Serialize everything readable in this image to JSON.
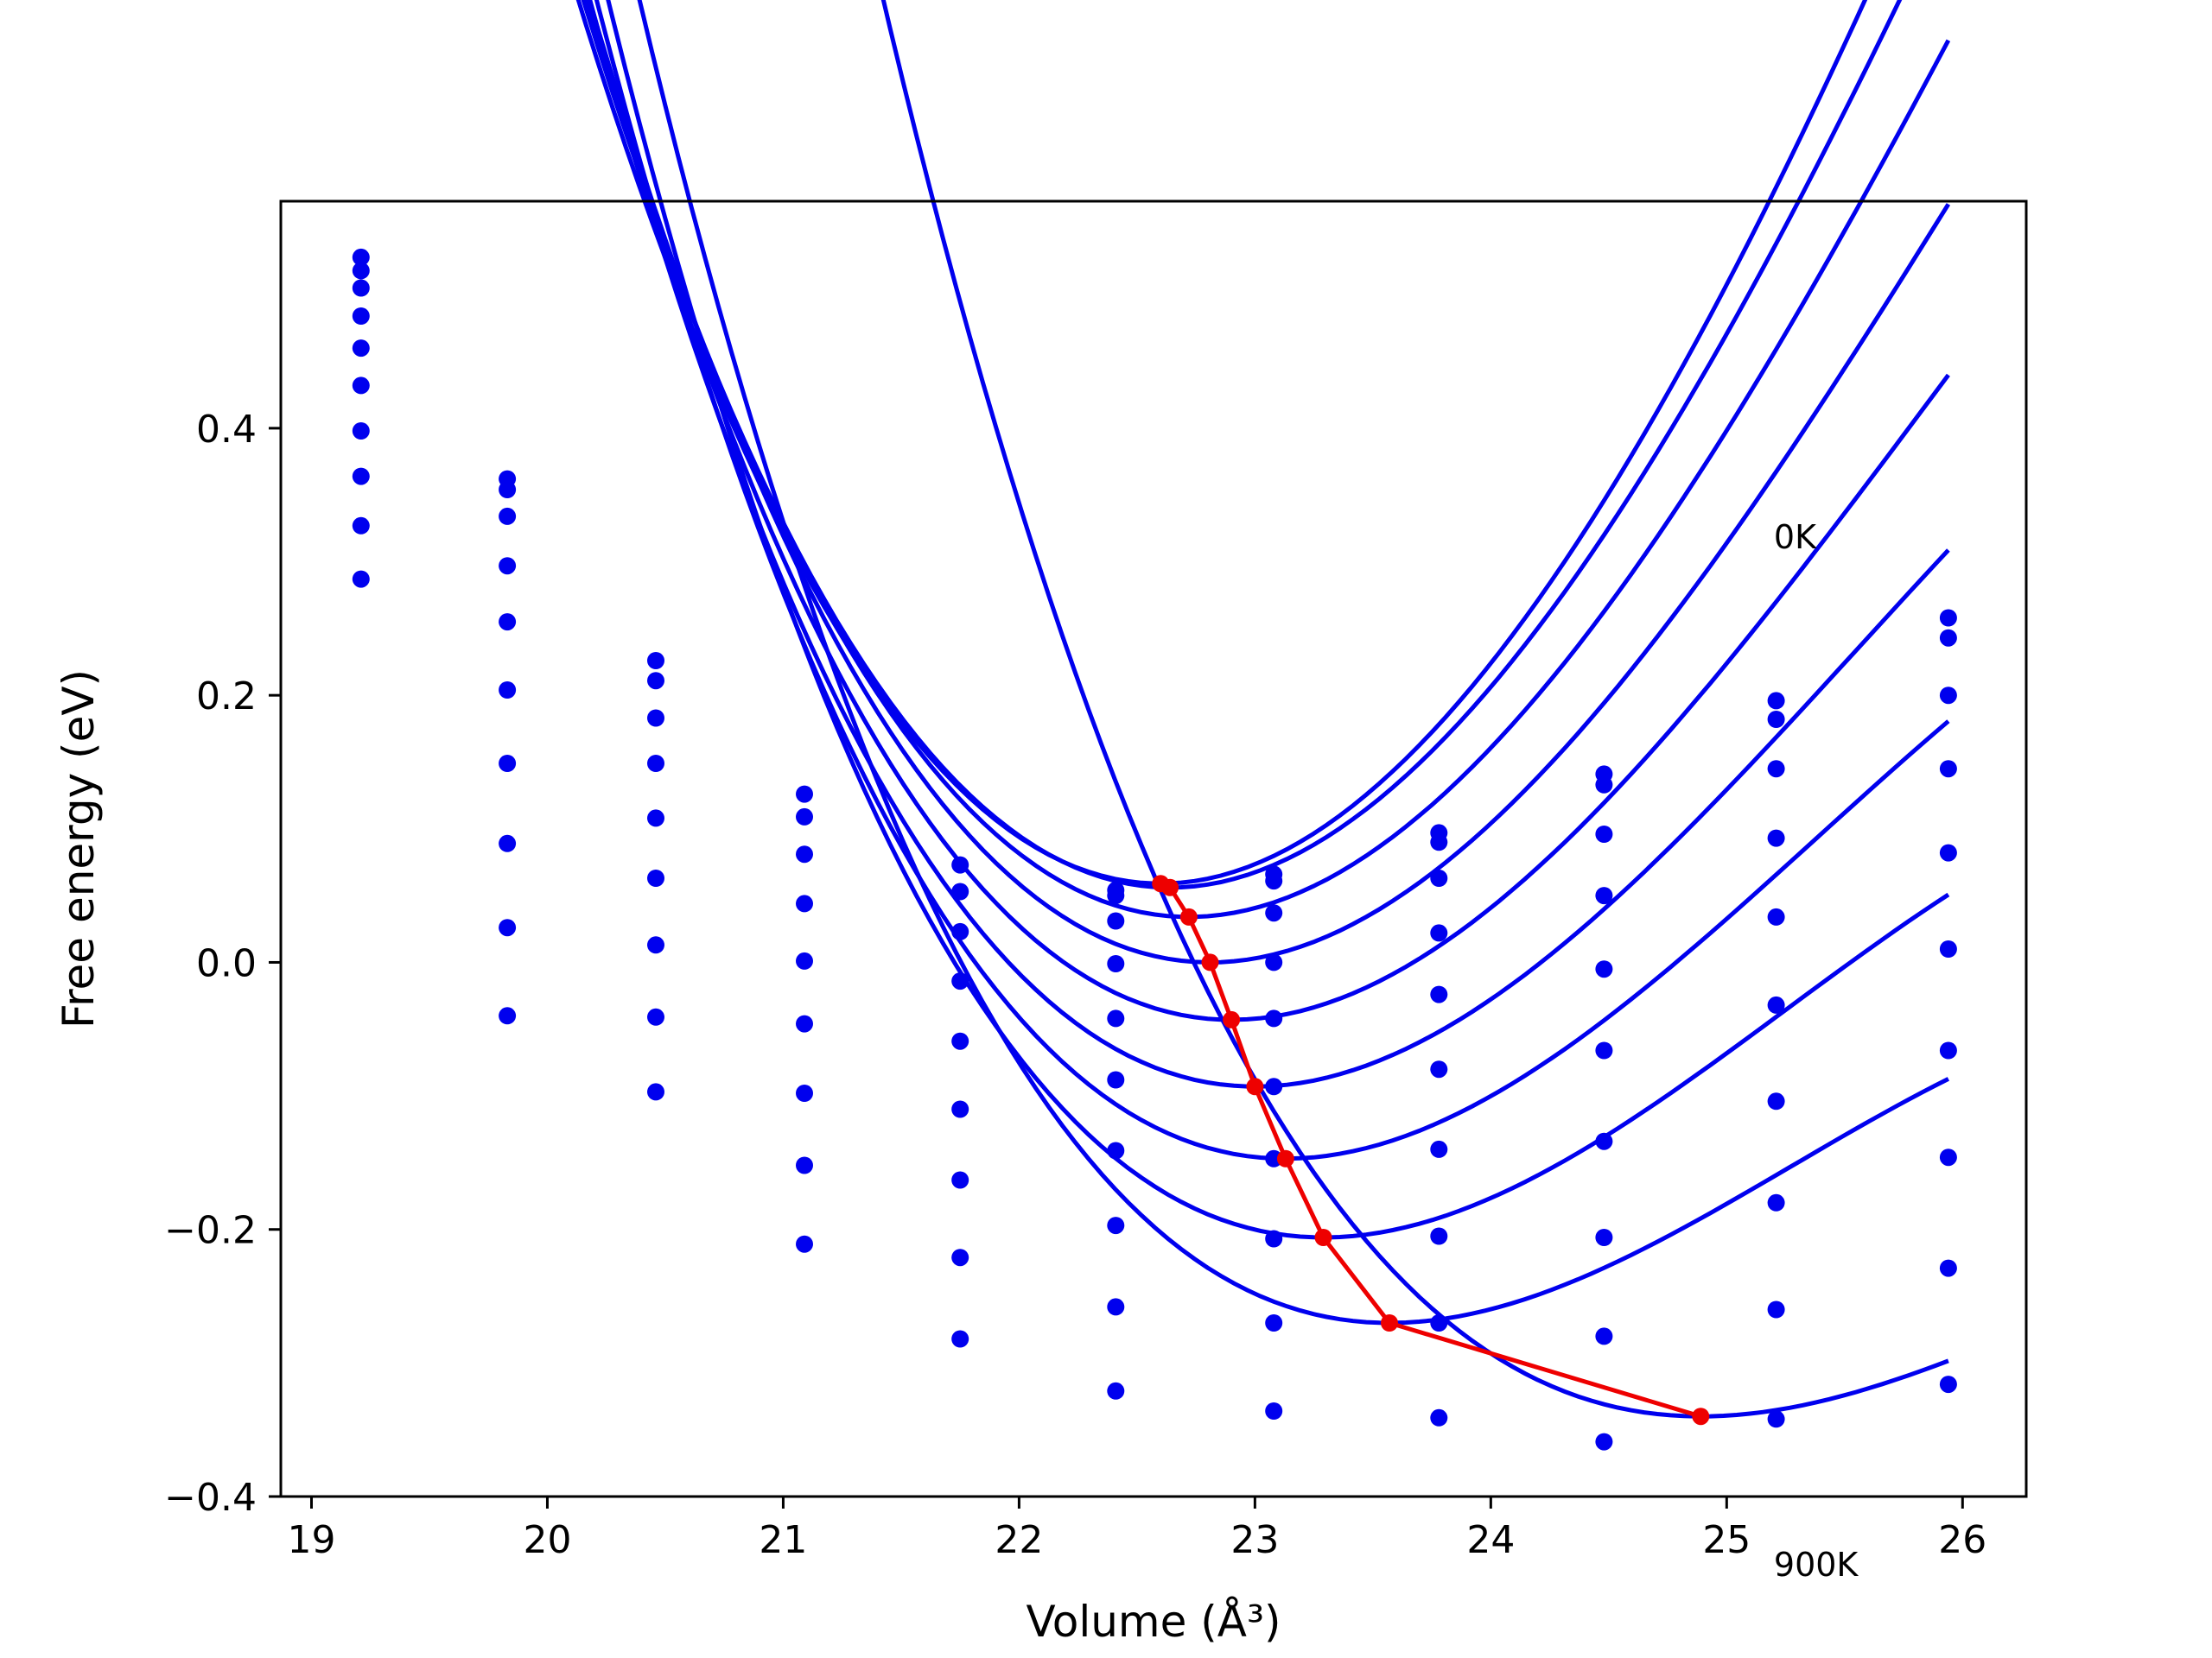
{
  "chart_data": {
    "type": "line",
    "title": "",
    "xlabel": "Volume (Å³)",
    "ylabel": "Free energy (eV)",
    "xlim": [
      18.87,
      26.27
    ],
    "ylim": [
      -0.4,
      0.57
    ],
    "xticks": [
      19,
      20,
      21,
      22,
      23,
      24,
      25,
      26
    ],
    "yticks": [
      -0.4,
      -0.2,
      0.0,
      0.2,
      0.4
    ],
    "xtick_labels": [
      "19",
      "20",
      "21",
      "22",
      "23",
      "24",
      "25",
      "26"
    ],
    "ytick_labels": [
      "−0.4",
      "−0.2",
      "0.0",
      "0.2",
      "0.4"
    ],
    "grid": false,
    "legend": "none",
    "annotations": [
      {
        "text": "0K",
        "x": 25.2,
        "y": 0.31
      },
      {
        "text": "900K",
        "x": 25.2,
        "y": -0.39
      }
    ],
    "x_points": [
      19.21,
      19.83,
      20.46,
      21.09,
      21.75,
      22.41,
      23.08,
      23.78,
      24.48,
      25.21,
      25.94
    ],
    "fit_x_range": [
      19.21,
      25.94
    ],
    "series": [
      {
        "fit": {
          "min_x": 22.6,
          "min_y": 0.059,
          "curv": 0.093,
          "cubic": -0.0063
        },
        "points": [
          0.528,
          0.362,
          0.226,
          0.126,
          0.073,
          0.054,
          0.066,
          0.097,
          0.141,
          0.196,
          0.258
        ]
      },
      {
        "fit": {
          "min_x": 22.64,
          "min_y": 0.056,
          "curv": 0.0905,
          "cubic": -0.0068
        },
        "points": [
          0.518,
          0.354,
          0.211,
          0.109,
          0.053,
          0.05,
          0.061,
          0.09,
          0.133,
          0.182,
          0.243
        ]
      },
      {
        "fit": {
          "min_x": 22.72,
          "min_y": 0.034,
          "curv": 0.0865,
          "cubic": -0.0072
        },
        "points": [
          0.505,
          0.334,
          0.183,
          0.081,
          0.023,
          0.031,
          0.037,
          0.063,
          0.096,
          0.145,
          0.2
        ]
      },
      {
        "fit": {
          "min_x": 22.81,
          "min_y": 0.0,
          "curv": 0.083,
          "cubic": -0.008
        },
        "points": [
          0.484,
          0.297,
          0.149,
          0.044,
          -0.014,
          -0.001,
          0.0,
          0.022,
          0.05,
          0.093,
          0.145
        ]
      },
      {
        "fit": {
          "min_x": 22.9,
          "min_y": -0.043,
          "curv": 0.079,
          "cubic": -0.0088
        },
        "points": [
          0.46,
          0.255,
          0.108,
          0.001,
          -0.059,
          -0.042,
          -0.042,
          -0.024,
          -0.005,
          0.034,
          0.082
        ]
      },
      {
        "fit": {
          "min_x": 23.0,
          "min_y": -0.093,
          "curv": 0.075,
          "cubic": -0.0097
        },
        "points": [
          0.432,
          0.204,
          0.063,
          -0.046,
          -0.11,
          -0.088,
          -0.093,
          -0.08,
          -0.066,
          -0.032,
          0.01
        ]
      },
      {
        "fit": {
          "min_x": 23.13,
          "min_y": -0.147,
          "curv": 0.071,
          "cubic": -0.0105
        },
        "points": [
          0.398,
          0.149,
          0.013,
          -0.098,
          -0.163,
          -0.141,
          -0.147,
          -0.14,
          -0.134,
          -0.104,
          -0.066
        ]
      },
      {
        "fit": {
          "min_x": 23.29,
          "min_y": -0.206,
          "curv": 0.0665,
          "cubic": -0.0113
        },
        "points": [
          0.364,
          0.089,
          -0.041,
          -0.152,
          -0.221,
          -0.197,
          -0.207,
          -0.205,
          -0.206,
          -0.18,
          -0.146
        ]
      },
      {
        "fit": {
          "min_x": 23.57,
          "min_y": -0.27,
          "curv": 0.0605,
          "cubic": -0.0118
        },
        "points": [
          0.327,
          0.026,
          -0.097,
          -0.211,
          -0.282,
          -0.258,
          -0.27,
          -0.27,
          -0.28,
          -0.26,
          -0.229
        ]
      },
      {
        "fit": {
          "min_x": 24.89,
          "min_y": -0.34,
          "curv": 0.0495,
          "cubic": -0.0112
        },
        "points": [
          0.287,
          -0.04,
          null,
          null,
          null,
          -0.321,
          -0.336,
          -0.341,
          -0.359,
          -0.342,
          -0.316
        ]
      }
    ],
    "minimum_path": {
      "x": [
        22.6,
        22.64,
        22.72,
        22.81,
        22.9,
        23.0,
        23.13,
        23.29,
        23.57,
        24.89
      ],
      "y": [
        0.059,
        0.056,
        0.034,
        0.0,
        -0.043,
        -0.093,
        -0.147,
        -0.206,
        -0.27,
        -0.34
      ]
    },
    "colors": {
      "curves": "#0000ee",
      "path": "#ee0000",
      "axes": "#000000"
    }
  }
}
